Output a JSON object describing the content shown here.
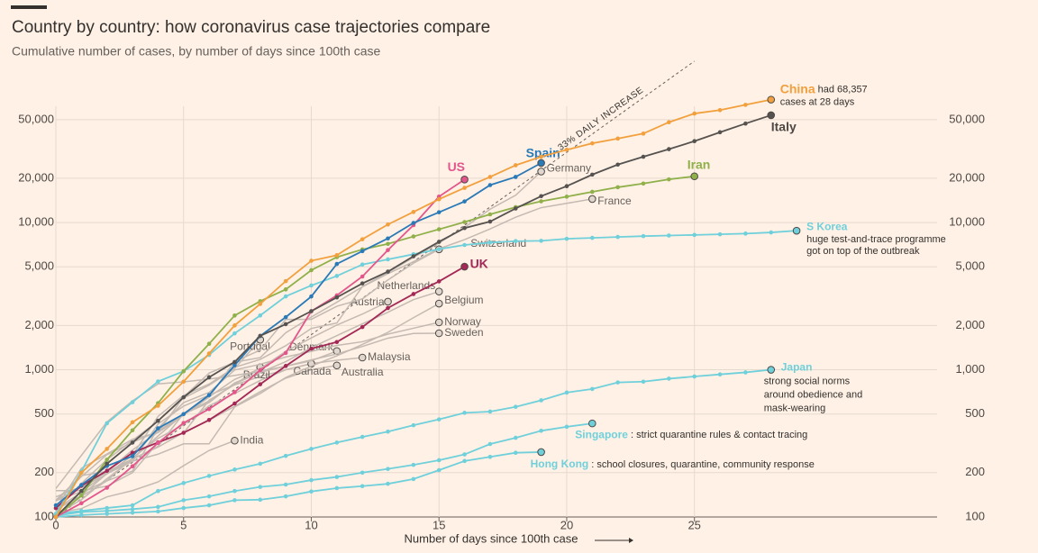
{
  "chart_data": {
    "type": "line",
    "title": "Country by country: how coronavirus case trajectories compare",
    "subtitle": "Cumulative number of cases, by number of days since 100th case",
    "x_label": "Number of days since 100th case",
    "log_y": true,
    "grid": true,
    "x": [
      0,
      1,
      2,
      3,
      4,
      5,
      6,
      7,
      8,
      9,
      10,
      11,
      12,
      13,
      14,
      15,
      16,
      17,
      18,
      19,
      20,
      21,
      22,
      23,
      24,
      25,
      26,
      27,
      28,
      29
    ],
    "xlim": [
      0,
      34.5
    ],
    "xticks": [
      0,
      5,
      10,
      15,
      20,
      25
    ],
    "ylim": [
      100,
      130000
    ],
    "yticks": [
      100,
      200,
      500,
      {
        "value": 1000,
        "label": "1,000"
      },
      {
        "value": 2000,
        "label": "2,000"
      },
      {
        "value": 5000,
        "label": "5,000"
      },
      {
        "value": 10000,
        "label": "10,000"
      },
      {
        "value": 20000,
        "label": "20,000"
      },
      {
        "value": 50000,
        "label": "50,000"
      }
    ],
    "reference": {
      "label": "33% DAILY INCREASE",
      "rate": 33,
      "start": 100
    },
    "series": [
      {
        "name": "China",
        "color": "#f2a03d",
        "markers": true,
        "note": [
          "had 68,357",
          "cases at 28 days"
        ],
        "values": [
          100,
          200,
          290,
          440,
          570,
          830,
          1290,
          2000,
          2800,
          4000,
          5500,
          6000,
          7700,
          9700,
          11800,
          14400,
          17200,
          20400,
          24500,
          28000,
          31200,
          34500,
          37200,
          40200,
          48000,
          55000,
          58000,
          63000,
          68357,
          null
        ]
      },
      {
        "name": "Italy",
        "color": "#555250",
        "markers": true,
        "values": [
          100,
          150,
          230,
          320,
          450,
          650,
          890,
          1130,
          1700,
          2040,
          2500,
          3100,
          3860,
          4640,
          5900,
          7400,
          9170,
          10150,
          12460,
          15110,
          17660,
          21160,
          24750,
          27980,
          31510,
          35710,
          41040,
          47020,
          53580,
          null
        ]
      },
      {
        "name": "Spain",
        "color": "#2a7ab8",
        "markers": true,
        "values": [
          120,
          165,
          222,
          259,
          400,
          500,
          673,
          1073,
          1695,
          2277,
          3146,
          5232,
          6391,
          7798,
          9942,
          11748,
          13910,
          17963,
          20410,
          25374,
          null,
          null,
          null,
          null,
          null,
          null,
          null,
          null,
          null,
          null
        ]
      },
      {
        "name": "US",
        "color": "#e3568c",
        "markers": true,
        "values": [
          100,
          124,
          158,
          221,
          319,
          435,
          541,
          704,
          994,
          1301,
          2500,
          3200,
          4300,
          6500,
          9600,
          15000,
          19600,
          null,
          null,
          null,
          null,
          null,
          null,
          null,
          null,
          null,
          null,
          null,
          null,
          null
        ]
      },
      {
        "name": "Iran",
        "color": "#8fb04a",
        "markers": true,
        "values": [
          100,
          140,
          245,
          388,
          593,
          978,
          1501,
          2336,
          2922,
          3513,
          4747,
          5823,
          6566,
          7161,
          8042,
          9000,
          10075,
          11364,
          12729,
          13938,
          14991,
          16169,
          17361,
          18407,
          19644,
          20610,
          null,
          null,
          null,
          null
        ]
      },
      {
        "name": "S Korea",
        "color": "#6fd0db",
        "markers": true,
        "note": [
          "huge test-and-trace programme",
          "got on top of the outbreak"
        ],
        "values": [
          104,
          204,
          433,
          602,
          833,
          977,
          1261,
          1766,
          2337,
          3150,
          3736,
          4335,
          5186,
          5621,
          6088,
          6593,
          7041,
          7313,
          7478,
          7513,
          7755,
          7869,
          7979,
          8086,
          8162,
          8236,
          8320,
          8413,
          8565,
          8800
        ]
      },
      {
        "name": "UK",
        "color": "#a32856",
        "markers": true,
        "values": [
          115,
          163,
          206,
          273,
          321,
          373,
          456,
          590,
          797,
          1061,
          1391,
          1543,
          1950,
          2626,
          3269,
          3983,
          5018,
          null,
          null,
          null,
          null,
          null,
          null,
          null,
          null,
          null,
          null,
          null,
          null,
          null
        ]
      },
      {
        "name": "Japan",
        "color": "#6fd0db",
        "markers": true,
        "note": [
          "strong social norms",
          "around obedience and",
          "mask-wearing"
        ],
        "values": [
          105,
          110,
          115,
          120,
          150,
          170,
          190,
          210,
          230,
          260,
          290,
          320,
          350,
          380,
          420,
          460,
          510,
          520,
          560,
          620,
          700,
          740,
          820,
          830,
          870,
          900,
          930,
          960,
          1000,
          null
        ]
      },
      {
        "name": "Singapore",
        "color": "#6fd0db",
        "markers": true,
        "note": [
          ": strict quarantine rules & contact tracing"
        ],
        "values": [
          102,
          108,
          110,
          113,
          117,
          130,
          138,
          150,
          160,
          166,
          178,
          187,
          200,
          212,
          226,
          243,
          266,
          313,
          345,
          385,
          410,
          432,
          null,
          null,
          null,
          null,
          null,
          null,
          null,
          null
        ]
      },
      {
        "name": "Hong Kong",
        "color": "#6fd0db",
        "markers": true,
        "note": [
          ": school closures, quarantine, community response"
        ],
        "values": [
          100,
          103,
          105,
          107,
          109,
          115,
          120,
          130,
          131,
          138,
          149,
          157,
          162,
          168,
          181,
          208,
          240,
          256,
          273,
          276,
          null,
          null,
          null,
          null,
          null,
          null,
          null,
          null,
          null,
          null
        ]
      },
      {
        "name": "Germany",
        "color": "#c4bab2",
        "markers": false,
        "values": [
          130,
          159,
          196,
          262,
          482,
          670,
          799,
          1040,
          1176,
          1457,
          1908,
          2078,
          3675,
          4585,
          5795,
          7272,
          9257,
          12327,
          15320,
          22213,
          null,
          null,
          null,
          null,
          null,
          null,
          null,
          null,
          null,
          null
        ]
      },
      {
        "name": "France",
        "color": "#c4bab2",
        "markers": false,
        "values": [
          130,
          191,
          204,
          285,
          377,
          653,
          949,
          1126,
          1209,
          1784,
          2281,
          2876,
          3661,
          4499,
          5423,
          6633,
          7652,
          9043,
          10871,
          12612,
          13500,
          14459,
          null,
          null,
          null,
          null,
          null,
          null,
          null,
          null
        ]
      },
      {
        "name": "Switzerland",
        "color": "#c4bab2",
        "markers": false,
        "values": [
          114,
          214,
          268,
          337,
          374,
          491,
          652,
          1139,
          1359,
          2200,
          2200,
          2700,
          3028,
          4075,
          5294,
          6575,
          null,
          null,
          null,
          null,
          null,
          null,
          null,
          null,
          null,
          null,
          null,
          null,
          null,
          null
        ]
      },
      {
        "name": "Netherlands",
        "color": "#c4bab2",
        "markers": false,
        "values": [
          128,
          188,
          265,
          321,
          382,
          503,
          614,
          804,
          959,
          1135,
          1413,
          1705,
          2051,
          2460,
          2994,
          3400,
          null,
          null,
          null,
          null,
          null,
          null,
          null,
          null,
          null,
          null,
          null,
          null,
          null,
          null
        ]
      },
      {
        "name": "Austria",
        "color": "#c4bab2",
        "markers": false,
        "values": [
          104,
          131,
          182,
          246,
          302,
          504,
          655,
          860,
          1018,
          1332,
          1646,
          2013,
          2388,
          2900,
          null,
          null,
          null,
          null,
          null,
          null,
          null,
          null,
          null,
          null,
          null,
          null,
          null,
          null,
          null,
          null
        ]
      },
      {
        "name": "Belgium",
        "color": "#c4bab2",
        "markers": false,
        "values": [
          109,
          169,
          200,
          239,
          267,
          314,
          314,
          559,
          689,
          886,
          1058,
          1243,
          1486,
          1795,
          2257,
          2815,
          null,
          null,
          null,
          null,
          null,
          null,
          null,
          null,
          null,
          null,
          null,
          null,
          null,
          null
        ]
      },
      {
        "name": "Norway",
        "color": "#c4bab2",
        "markers": false,
        "values": [
          113,
          147,
          176,
          205,
          400,
          598,
          702,
          996,
          1090,
          1221,
          1333,
          1463,
          1550,
          1746,
          1914,
          2100,
          null,
          null,
          null,
          null,
          null,
          null,
          null,
          null,
          null,
          null,
          null,
          null,
          null,
          null
        ]
      },
      {
        "name": "Sweden",
        "color": "#c4bab2",
        "markers": false,
        "values": [
          137,
          161,
          203,
          248,
          355,
          500,
          599,
          814,
          961,
          1059,
          1167,
          1279,
          1439,
          1639,
          1763,
          1770,
          null,
          null,
          null,
          null,
          null,
          null,
          null,
          null,
          null,
          null,
          null,
          null,
          null,
          null
        ]
      },
      {
        "name": "Portugal",
        "color": "#c4bab2",
        "markers": false,
        "values": [
          112,
          169,
          245,
          331,
          448,
          642,
          785,
          1020,
          1600,
          null,
          null,
          null,
          null,
          null,
          null,
          null,
          null,
          null,
          null,
          null,
          null,
          null,
          null,
          null,
          null,
          null,
          null,
          null,
          null,
          null
        ]
      },
      {
        "name": "Denmark",
        "color": "#c4bab2",
        "markers": false,
        "values": [
          156,
          262,
          442,
          615,
          801,
          827,
          864,
          914,
          977,
          1057,
          1151,
          1340,
          null,
          null,
          null,
          null,
          null,
          null,
          null,
          null,
          null,
          null,
          null,
          null,
          null,
          null,
          null,
          null,
          null,
          null
        ]
      },
      {
        "name": "Brazil",
        "color": "#c4bab2",
        "markers": false,
        "values": [
          151,
          151,
          162,
          200,
          321,
          372,
          621,
          793,
          1040,
          null,
          null,
          null,
          null,
          null,
          null,
          null,
          null,
          null,
          null,
          null,
          null,
          null,
          null,
          null,
          null,
          null,
          null,
          null,
          null,
          null
        ]
      },
      {
        "name": "Canada",
        "color": "#c4bab2",
        "markers": false,
        "values": [
          103,
          138,
          176,
          252,
          342,
          424,
          569,
          690,
          846,
          1000,
          1100,
          null,
          null,
          null,
          null,
          null,
          null,
          null,
          null,
          null,
          null,
          null,
          null,
          null,
          null,
          null,
          null,
          null,
          null,
          null
        ]
      },
      {
        "name": "Australia",
        "color": "#c4bab2",
        "markers": false,
        "values": [
          112,
          140,
          197,
          249,
          298,
          375,
          454,
          565,
          709,
          877,
          1000,
          1070,
          null,
          null,
          null,
          null,
          null,
          null,
          null,
          null,
          null,
          null,
          null,
          null,
          null,
          null,
          null,
          null,
          null,
          null
        ]
      },
      {
        "name": "Malaysia",
        "color": "#c4bab2",
        "markers": false,
        "values": [
          129,
          149,
          197,
          238,
          428,
          566,
          673,
          790,
          900,
          1000,
          1100,
          1160,
          1210,
          null,
          null,
          null,
          null,
          null,
          null,
          null,
          null,
          null,
          null,
          null,
          null,
          null,
          null,
          null,
          null,
          null
        ]
      },
      {
        "name": "India",
        "color": "#c4bab2",
        "markers": false,
        "values": [
          107,
          114,
          137,
          151,
          173,
          223,
          283,
          330,
          null,
          null,
          null,
          null,
          null,
          null,
          null,
          null,
          null,
          null,
          null,
          null,
          null,
          null,
          null,
          null,
          null,
          null,
          null,
          null,
          null,
          null
        ]
      }
    ]
  }
}
